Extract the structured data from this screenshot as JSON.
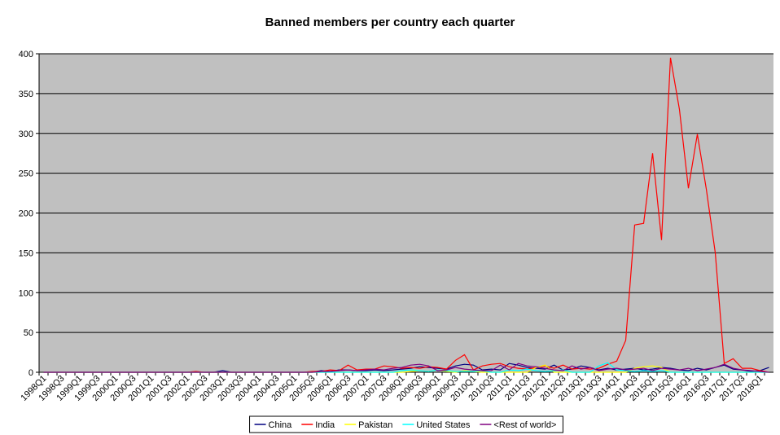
{
  "chart_data": {
    "type": "line",
    "title": "Banned members per country each quarter",
    "categories": [
      "1998Q1",
      null,
      "1998Q3",
      null,
      "1999Q1",
      null,
      "1999Q3",
      null,
      "2000Q1",
      null,
      "2000Q3",
      null,
      "2001Q1",
      null,
      "2001Q3",
      null,
      "2002Q1",
      null,
      "2002Q3",
      null,
      "2003Q1",
      null,
      "2003Q3",
      null,
      "2004Q1",
      null,
      "2004Q3",
      null,
      "2005Q1",
      null,
      "2005Q3",
      null,
      "2006Q1",
      null,
      "2006Q3",
      null,
      "2007Q1",
      null,
      "2007Q3",
      null,
      "2008Q1",
      null,
      "2008Q3",
      null,
      "2009Q1",
      null,
      "2009Q3",
      null,
      "2010Q1",
      null,
      "2010Q3",
      null,
      "2011Q1",
      null,
      "2011Q3",
      null,
      "2012Q1",
      null,
      "2012Q3",
      null,
      "2013Q1",
      null,
      "2013Q3",
      null,
      "2014Q1",
      null,
      "2014Q3",
      null,
      "2015Q1",
      null,
      "2015Q3",
      null,
      "2016Q1",
      null,
      "2016Q3",
      null,
      "2017Q1",
      null,
      "2017Q3",
      null,
      "2018Q1",
      null
    ],
    "series": [
      {
        "name": "China",
        "color": "#000080",
        "values": [
          0,
          0,
          0,
          0,
          0,
          0,
          0,
          0,
          0,
          0,
          0,
          0,
          0,
          0,
          0,
          0,
          0,
          0,
          0,
          0,
          2,
          0,
          0,
          0,
          0,
          0,
          0,
          0,
          0,
          0,
          0,
          2,
          1,
          3,
          3,
          2,
          2,
          3,
          2,
          3,
          4,
          5,
          7,
          6,
          5,
          4,
          8,
          10,
          9,
          3,
          4,
          3,
          11,
          9,
          6,
          5,
          4,
          9,
          3,
          4,
          8,
          6,
          3,
          5,
          3,
          4,
          5,
          3,
          4,
          6,
          5,
          3,
          2,
          5,
          3,
          6,
          9,
          4,
          3,
          1,
          2,
          6
        ]
      },
      {
        "name": "India",
        "color": "#ff0000",
        "values": [
          0,
          0,
          0,
          0,
          0,
          0,
          0,
          0,
          0,
          0,
          0,
          0,
          0,
          0,
          0,
          0,
          0,
          1,
          0,
          0,
          0,
          0,
          0,
          0,
          0,
          0,
          0,
          0,
          0,
          0,
          1,
          1,
          3,
          2,
          9,
          3,
          4,
          4,
          8,
          7,
          5,
          6,
          5,
          7,
          6,
          4,
          15,
          22,
          3,
          8,
          10,
          11,
          7,
          5,
          4,
          6,
          8,
          5,
          9,
          4,
          5,
          4,
          5,
          10,
          14,
          40,
          185,
          187,
          275,
          166,
          395,
          330,
          231,
          299,
          230,
          150,
          11,
          17,
          5,
          5,
          2,
          0
        ]
      },
      {
        "name": "Pakistan",
        "color": "#ffff00",
        "values": [
          0,
          0,
          0,
          0,
          0,
          0,
          0,
          0,
          0,
          0,
          0,
          0,
          0,
          0,
          0,
          0,
          0,
          0,
          0,
          0,
          0,
          0,
          0,
          0,
          0,
          0,
          0,
          0,
          0,
          0,
          0,
          0,
          0,
          0,
          0,
          0,
          0,
          0,
          0,
          0,
          0,
          1,
          2,
          1,
          3,
          1,
          0,
          2,
          1,
          0,
          0,
          0,
          0,
          0,
          0,
          6,
          9,
          0,
          0,
          0,
          0,
          0,
          0,
          0,
          0,
          0,
          5,
          7,
          8,
          6,
          0,
          0,
          0,
          0,
          0,
          0,
          0,
          0,
          0,
          0,
          0,
          0
        ]
      },
      {
        "name": "United States",
        "color": "#00ffff",
        "values": [
          0,
          0,
          0,
          0,
          0,
          0,
          0,
          0,
          0,
          0,
          0,
          0,
          0,
          0,
          0,
          0,
          0,
          0,
          0,
          0,
          0,
          0,
          0,
          0,
          0,
          0,
          0,
          0,
          0,
          0,
          0,
          0,
          0,
          0,
          0,
          0,
          0,
          0,
          0,
          0,
          2,
          3,
          2,
          1,
          3,
          2,
          1,
          1,
          1,
          2,
          0,
          0,
          3,
          2,
          4,
          2,
          1,
          2,
          3,
          0,
          0,
          0,
          8,
          12,
          3,
          2,
          1,
          2,
          1,
          2,
          0,
          0,
          0,
          0,
          0,
          0,
          0,
          0,
          0,
          0,
          0,
          0
        ]
      },
      {
        "name": "<Rest of world>",
        "color": "#800080",
        "values": [
          0,
          0,
          0,
          0,
          0,
          0,
          0,
          0,
          0,
          0,
          0,
          0,
          0,
          0,
          0,
          0,
          0,
          0,
          0,
          0,
          0,
          0,
          0,
          0,
          0,
          0,
          0,
          0,
          0,
          0,
          0,
          1,
          1,
          2,
          3,
          2,
          3,
          4,
          3,
          5,
          6,
          9,
          10,
          8,
          2,
          3,
          6,
          4,
          3,
          2,
          2,
          9,
          3,
          11,
          8,
          7,
          5,
          3,
          2,
          8,
          4,
          6,
          2,
          4,
          5,
          3,
          4,
          5,
          2,
          5,
          4,
          3,
          5,
          2,
          4,
          6,
          10,
          5,
          3,
          2,
          1,
          0
        ]
      }
    ],
    "ylim": [
      0,
      400
    ],
    "yticks": [
      0,
      50,
      100,
      150,
      200,
      250,
      300,
      350,
      400
    ],
    "grid": true,
    "legend": "bottom"
  }
}
